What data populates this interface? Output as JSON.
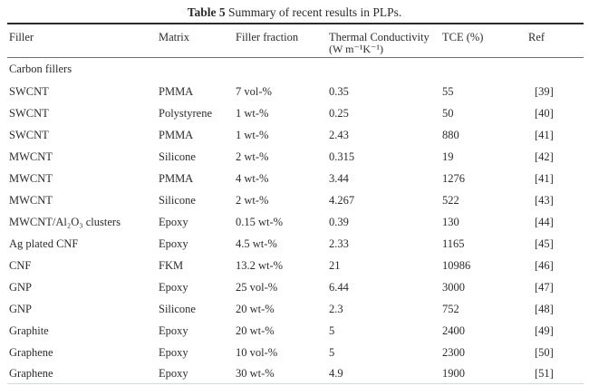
{
  "caption": {
    "label": "Table 5",
    "text": " Summary of recent results in PLPs."
  },
  "columns": [
    "Filler",
    "Matrix",
    "Filler fraction",
    "Thermal Conductivity",
    "TCE (%)",
    "Ref"
  ],
  "thermal_unit": "(W m⁻¹K⁻¹)",
  "section": "Carbon fillers",
  "rows": [
    {
      "filler": "SWCNT",
      "matrix": "PMMA",
      "fraction": "7 vol-%",
      "thermal_conductivity": "0.35",
      "tce": "55",
      "ref": "[39]"
    },
    {
      "filler": "SWCNT",
      "matrix": "Polystyrene",
      "fraction": "1 wt-%",
      "thermal_conductivity": "0.25",
      "tce": "50",
      "ref": "[40]"
    },
    {
      "filler": "SWCNT",
      "matrix": "PMMA",
      "fraction": "1 wt-%",
      "thermal_conductivity": "2.43",
      "tce": "880",
      "ref": "[41]"
    },
    {
      "filler": "MWCNT",
      "matrix": "Silicone",
      "fraction": "2 wt-%",
      "thermal_conductivity": "0.315",
      "tce": "19",
      "ref": "[42]"
    },
    {
      "filler": "MWCNT",
      "matrix": "PMMA",
      "fraction": "4 wt-%",
      "thermal_conductivity": "3.44",
      "tce": "1276",
      "ref": "[41]"
    },
    {
      "filler": "MWCNT",
      "matrix": "Silicone",
      "fraction": "2 wt-%",
      "thermal_conductivity": "4.267",
      "tce": "522",
      "ref": "[43]"
    },
    {
      "filler": "MWCNT/Al₂O₃ clusters",
      "matrix": "Epoxy",
      "fraction": "0.15 wt-%",
      "thermal_conductivity": "0.39",
      "tce": "130",
      "ref": "[44]"
    },
    {
      "filler": "Ag plated CNF",
      "matrix": "Epoxy",
      "fraction": "4.5 wt-%",
      "thermal_conductivity": "2.33",
      "tce": "1165",
      "ref": "[45]"
    },
    {
      "filler": "CNF",
      "matrix": "FKM",
      "fraction": "13.2 wt-%",
      "thermal_conductivity": "21",
      "tce": "10986",
      "ref": "[46]"
    },
    {
      "filler": "GNP",
      "matrix": "Epoxy",
      "fraction": "25 vol-%",
      "thermal_conductivity": "6.44",
      "tce": "3000",
      "ref": "[47]"
    },
    {
      "filler": "GNP",
      "matrix": "Silicone",
      "fraction": "20 wt-%",
      "thermal_conductivity": "2.3",
      "tce": "752",
      "ref": "[48]"
    },
    {
      "filler": "Graphite",
      "matrix": "Epoxy",
      "fraction": "20 wt-%",
      "thermal_conductivity": "5",
      "tce": "2400",
      "ref": "[49]"
    },
    {
      "filler": "Graphene",
      "matrix": "Epoxy",
      "fraction": "10 vol-%",
      "thermal_conductivity": "5",
      "tce": "2300",
      "ref": "[50]"
    },
    {
      "filler": "Graphene",
      "matrix": "Epoxy",
      "fraction": "30 wt-%",
      "thermal_conductivity": "4.9",
      "tce": "1900",
      "ref": "[51]"
    }
  ],
  "colors": {
    "background": "#ffffff",
    "text": "#2b2b2b",
    "rule_dark": "#2a2a2a",
    "rule_mid": "#6e6e6e",
    "rule_light": "#d5d8da"
  }
}
